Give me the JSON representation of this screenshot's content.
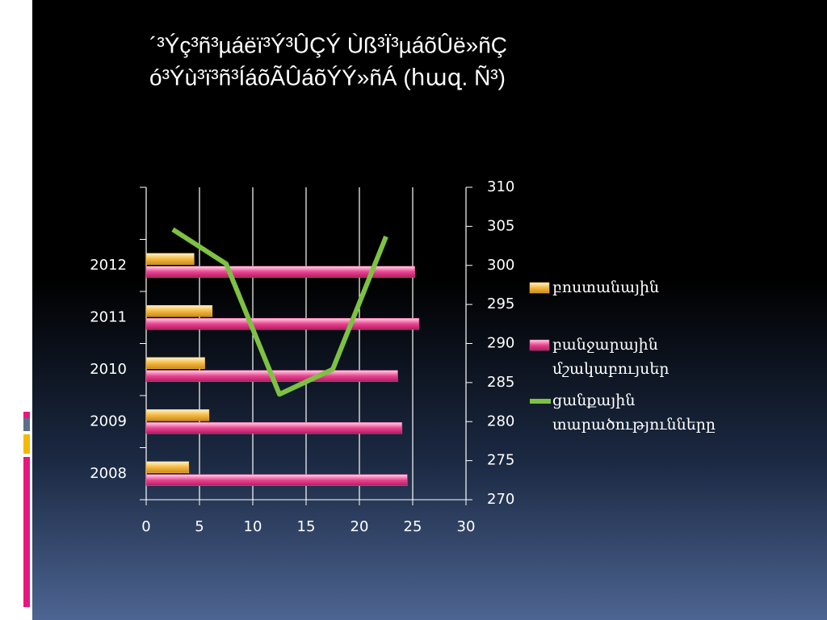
{
  "chart_data": {
    "type": "bar-line",
    "orientation": "horizontal",
    "title": [
      "´³Ýç³ñ³µáëï³Ý³ÛÇÝ  Ùß³Ï³µáõÛë»ñÇ",
      "ó³Ýù³ï³ñ³ÍáõÃÛáõÝÝ»ñÁ  (հազ. Ñ³)"
    ],
    "categories": [
      "2008",
      "2009",
      "2010",
      "2011",
      "2012",
      null
    ],
    "series": [
      {
        "name": "բոստանային",
        "type": "bar",
        "color": "#f5b942",
        "values": [
          4.0,
          5.9,
          5.5,
          6.2,
          4.5,
          null
        ]
      },
      {
        "name": "բանջարային մշակաբույսեր",
        "type": "bar",
        "color": "#e8458f",
        "values": [
          24.5,
          24.0,
          23.6,
          25.6,
          25.2,
          null
        ]
      },
      {
        "name": "ցանքային տարածությունները",
        "type": "line",
        "axis": "y2",
        "color": "#7dc242",
        "values": [
          304.6,
          300.2,
          283.5,
          286.7,
          303.7,
          null
        ]
      }
    ],
    "xlim": [
      0,
      30
    ],
    "xticks": [
      0,
      5,
      10,
      15,
      20,
      25,
      30
    ],
    "y2lim": [
      270,
      310
    ],
    "y2ticks": [
      270,
      275,
      280,
      285,
      290,
      295,
      300,
      305,
      310
    ],
    "grid": true,
    "legend": "right"
  }
}
